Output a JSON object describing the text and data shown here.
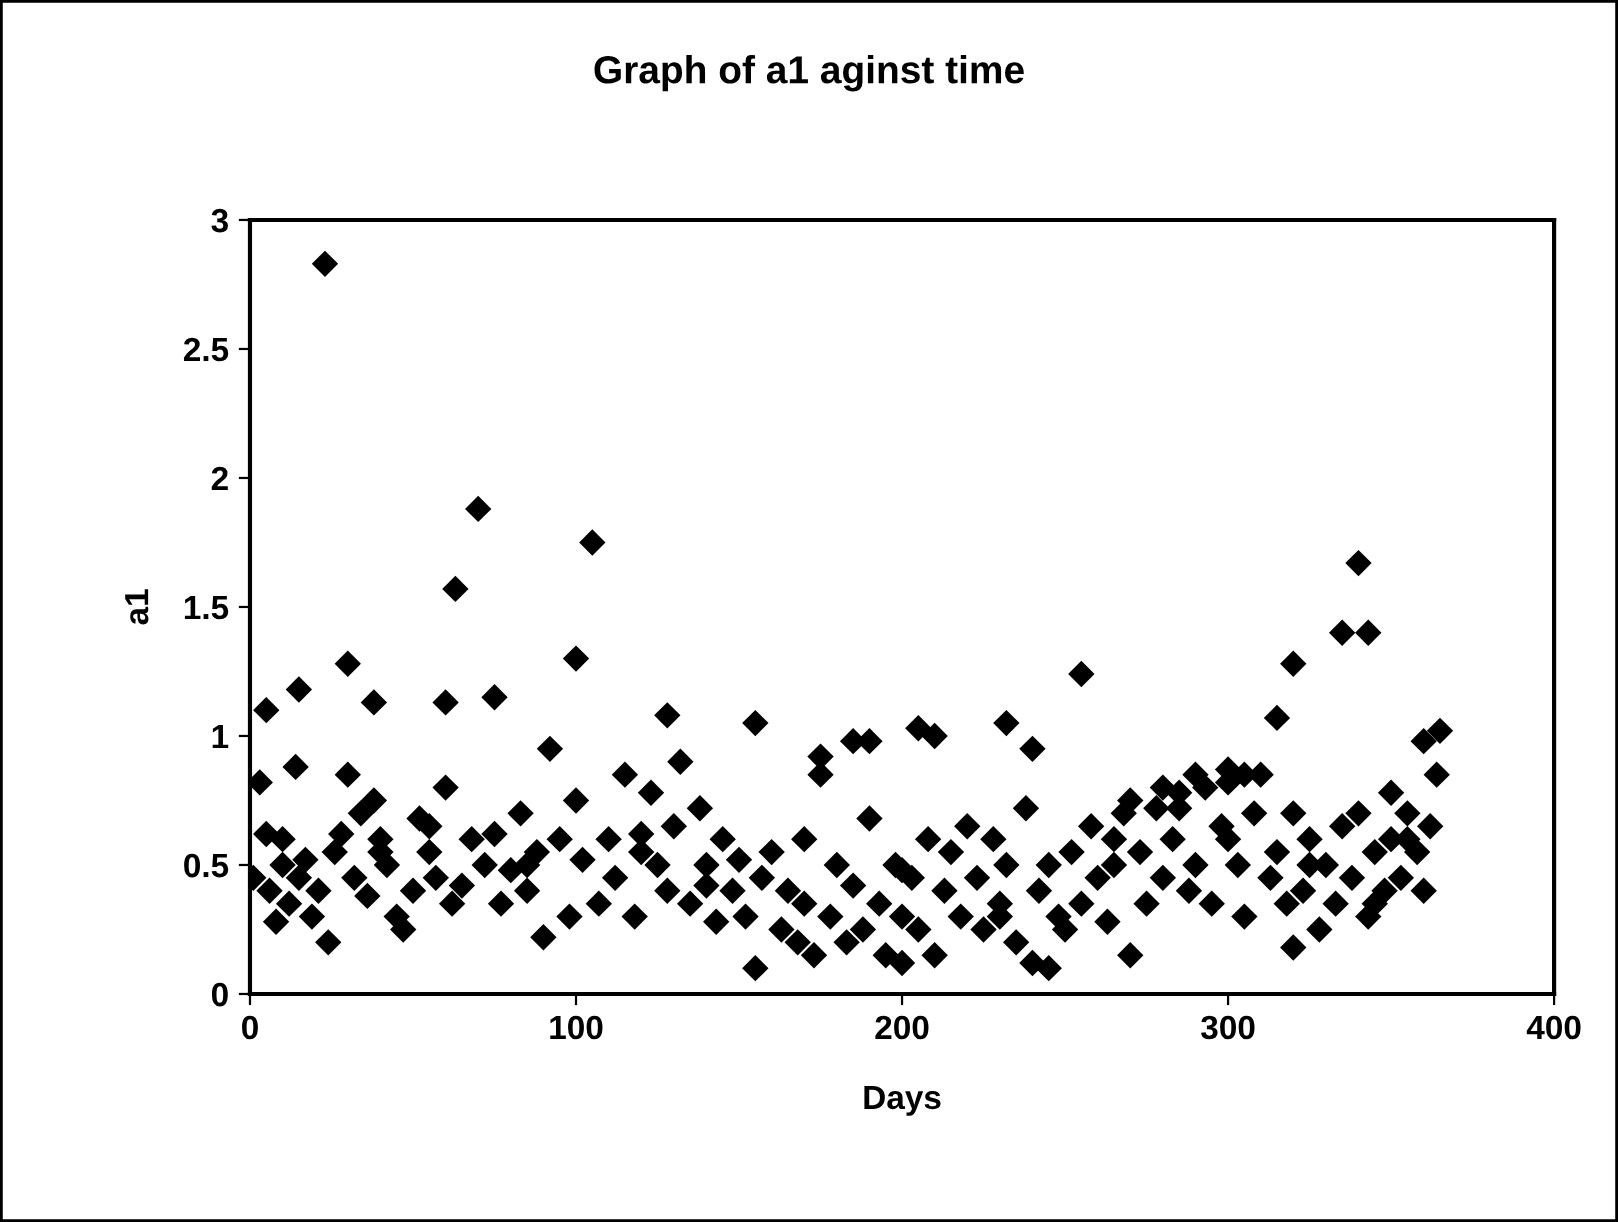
{
  "chart_data": {
    "type": "scatter",
    "title": "Graph of a1 aginst time",
    "xlabel": "Days",
    "ylabel": "a1",
    "xlim": [
      0,
      400
    ],
    "ylim": [
      0,
      3
    ],
    "xticks": [
      0,
      100,
      200,
      300,
      400
    ],
    "yticks": [
      0,
      0.5,
      1,
      1.5,
      2,
      2.5,
      3
    ],
    "grid": false,
    "legend": false,
    "marker": "diamond",
    "series": [
      {
        "color": "#000000",
        "x": [
          1,
          3,
          5,
          6,
          8,
          10,
          12,
          14,
          15,
          17,
          19,
          21,
          23,
          24,
          26,
          28,
          30,
          32,
          34,
          36,
          38,
          40,
          42,
          45,
          47,
          50,
          52,
          55,
          57,
          60,
          62,
          63,
          65,
          68,
          70,
          72,
          75,
          77,
          80,
          83,
          85,
          88,
          90,
          92,
          95,
          98,
          100,
          102,
          105,
          107,
          110,
          112,
          115,
          118,
          120,
          123,
          125,
          128,
          130,
          132,
          135,
          138,
          140,
          143,
          145,
          148,
          150,
          152,
          155,
          157,
          160,
          163,
          165,
          168,
          170,
          173,
          175,
          178,
          180,
          183,
          185,
          188,
          190,
          193,
          195,
          198,
          200,
          203,
          205,
          208,
          210,
          213,
          215,
          218,
          220,
          223,
          225,
          228,
          230,
          232,
          235,
          238,
          240,
          242,
          245,
          248,
          250,
          252,
          255,
          258,
          260,
          263,
          265,
          268,
          270,
          273,
          275,
          278,
          280,
          283,
          285,
          288,
          290,
          293,
          295,
          298,
          300,
          303,
          305,
          308,
          310,
          313,
          315,
          318,
          320,
          323,
          325,
          328,
          330,
          333,
          335,
          338,
          340,
          343,
          345,
          348,
          350,
          353,
          355,
          358,
          360,
          362,
          364,
          5,
          15,
          30,
          38,
          60,
          75,
          100,
          128,
          155,
          175,
          185,
          190,
          205,
          210,
          232,
          240,
          255,
          315,
          320,
          335,
          343,
          340,
          350,
          360,
          365,
          10,
          40,
          55,
          85,
          120,
          140,
          170,
          200,
          230,
          265,
          285,
          300,
          325,
          345,
          355,
          270,
          280,
          290,
          300,
          305,
          245,
          320,
          200
        ],
        "values": [
          0.45,
          0.82,
          0.62,
          0.4,
          0.28,
          0.5,
          0.35,
          0.88,
          0.45,
          0.52,
          0.3,
          0.4,
          2.83,
          0.2,
          0.55,
          0.62,
          0.85,
          0.45,
          0.7,
          0.38,
          0.75,
          0.6,
          0.5,
          0.3,
          0.25,
          0.4,
          0.68,
          0.55,
          0.45,
          0.8,
          0.35,
          1.57,
          0.42,
          0.6,
          1.88,
          0.5,
          0.62,
          0.35,
          0.48,
          0.7,
          0.4,
          0.55,
          0.22,
          0.95,
          0.6,
          0.3,
          0.75,
          0.52,
          1.75,
          0.35,
          0.6,
          0.45,
          0.85,
          0.3,
          0.55,
          0.78,
          0.5,
          0.4,
          0.65,
          0.9,
          0.35,
          0.72,
          0.5,
          0.28,
          0.6,
          0.4,
          0.52,
          0.3,
          0.1,
          0.45,
          0.55,
          0.25,
          0.4,
          0.2,
          0.6,
          0.15,
          0.85,
          0.3,
          0.5,
          0.2,
          0.42,
          0.25,
          0.68,
          0.35,
          0.15,
          0.5,
          0.3,
          0.45,
          0.25,
          0.6,
          0.15,
          0.4,
          0.55,
          0.3,
          0.65,
          0.45,
          0.25,
          0.6,
          0.35,
          0.5,
          0.2,
          0.72,
          0.12,
          0.4,
          0.5,
          0.3,
          0.25,
          0.55,
          0.35,
          0.65,
          0.45,
          0.28,
          0.5,
          0.7,
          0.15,
          0.55,
          0.35,
          0.72,
          0.45,
          0.6,
          0.78,
          0.4,
          0.5,
          0.8,
          0.35,
          0.65,
          0.82,
          0.5,
          0.3,
          0.7,
          0.85,
          0.45,
          0.55,
          0.35,
          0.7,
          0.4,
          0.6,
          0.25,
          0.5,
          0.35,
          0.65,
          0.45,
          0.7,
          0.3,
          0.55,
          0.4,
          0.6,
          0.45,
          0.7,
          0.55,
          0.4,
          0.65,
          0.85,
          1.1,
          1.18,
          1.28,
          1.13,
          1.13,
          1.15,
          1.3,
          1.08,
          1.05,
          0.92,
          0.98,
          0.98,
          1.03,
          1.0,
          1.05,
          0.95,
          1.24,
          1.07,
          1.28,
          1.4,
          1.4,
          1.67,
          0.78,
          0.98,
          1.02,
          0.6,
          0.55,
          0.65,
          0.5,
          0.62,
          0.42,
          0.35,
          0.48,
          0.3,
          0.6,
          0.72,
          0.6,
          0.5,
          0.35,
          0.6,
          0.75,
          0.8,
          0.85,
          0.87,
          0.85,
          0.1,
          0.18,
          0.12
        ]
      }
    ]
  }
}
